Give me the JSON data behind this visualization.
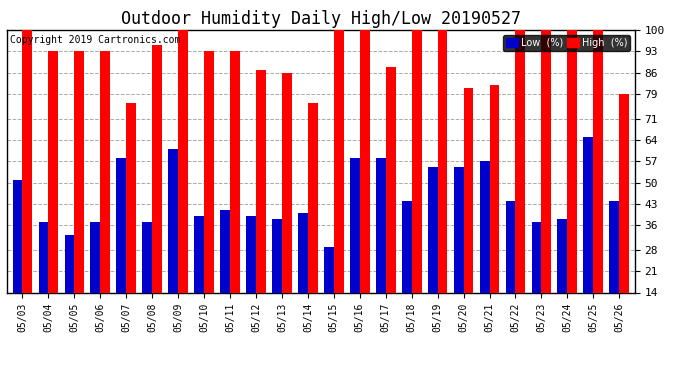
{
  "title": "Outdoor Humidity Daily High/Low 20190527",
  "copyright": "Copyright 2019 Cartronics.com",
  "dates": [
    "05/03",
    "05/04",
    "05/05",
    "05/06",
    "05/07",
    "05/08",
    "05/09",
    "05/10",
    "05/11",
    "05/12",
    "05/13",
    "05/14",
    "05/15",
    "05/16",
    "05/17",
    "05/18",
    "05/19",
    "05/20",
    "05/21",
    "05/22",
    "05/23",
    "05/24",
    "05/25",
    "05/26"
  ],
  "high": [
    100,
    93,
    93,
    93,
    76,
    95,
    100,
    93,
    93,
    87,
    86,
    76,
    100,
    100,
    88,
    100,
    100,
    81,
    82,
    100,
    100,
    100,
    100,
    79
  ],
  "low": [
    51,
    37,
    33,
    37,
    58,
    37,
    61,
    39,
    41,
    39,
    38,
    40,
    29,
    58,
    58,
    44,
    55,
    55,
    57,
    44,
    37,
    38,
    65,
    44
  ],
  "ymin": 14,
  "ymax": 100,
  "yticks": [
    14,
    21,
    28,
    36,
    43,
    50,
    57,
    64,
    71,
    79,
    86,
    93,
    100
  ],
  "high_color": "#ff0000",
  "low_color": "#0000cc",
  "bg_color": "#ffffff",
  "grid_color": "#aaaaaa",
  "title_fontsize": 12,
  "legend_high_label": "High  (%)",
  "legend_low_label": "Low  (%)"
}
